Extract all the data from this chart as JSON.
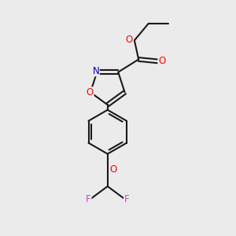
{
  "bg_color": "#ebebeb",
  "bond_color": "#1a1a1a",
  "bond_width": 1.5,
  "atom_colors": {
    "O": "#ff0000",
    "N": "#0000cd",
    "F": "#cc44cc",
    "C": "#1a1a1a"
  },
  "font_size": 8.5,
  "fig_size": [
    3.0,
    3.0
  ],
  "dpi": 100
}
